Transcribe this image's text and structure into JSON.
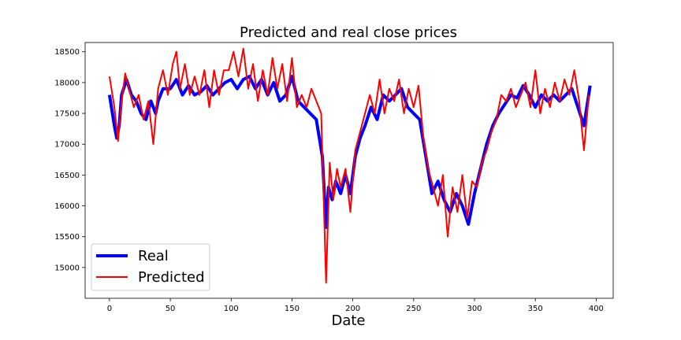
{
  "chart_data": {
    "type": "line",
    "title": "Predicted and real close prices",
    "xlabel": "Date",
    "ylabel": "",
    "xlim": [
      -20,
      414
    ],
    "ylim": [
      14500,
      18650
    ],
    "x_ticks": [
      0,
      50,
      100,
      150,
      200,
      250,
      300,
      350,
      400
    ],
    "y_ticks": [
      15000,
      15500,
      16000,
      16500,
      17000,
      17500,
      18000,
      18500
    ],
    "grid": false,
    "legend_position": "lower-left",
    "series": [
      {
        "name": "Real",
        "color": "#0000ff",
        "keypoints": [
          [
            0,
            17800
          ],
          [
            2,
            17550
          ],
          [
            4,
            17300
          ],
          [
            6,
            17100
          ],
          [
            8,
            17300
          ],
          [
            10,
            17800
          ],
          [
            14,
            18050
          ],
          [
            18,
            17800
          ],
          [
            22,
            17700
          ],
          [
            26,
            17500
          ],
          [
            30,
            17400
          ],
          [
            34,
            17700
          ],
          [
            38,
            17500
          ],
          [
            40,
            17700
          ],
          [
            44,
            17900
          ],
          [
            50,
            17900
          ],
          [
            55,
            18050
          ],
          [
            60,
            17800
          ],
          [
            65,
            17950
          ],
          [
            70,
            17800
          ],
          [
            75,
            17850
          ],
          [
            80,
            17950
          ],
          [
            85,
            17800
          ],
          [
            90,
            17900
          ],
          [
            95,
            18000
          ],
          [
            100,
            18050
          ],
          [
            105,
            17900
          ],
          [
            110,
            18050
          ],
          [
            115,
            18100
          ],
          [
            120,
            17900
          ],
          [
            125,
            18050
          ],
          [
            130,
            17800
          ],
          [
            135,
            18000
          ],
          [
            140,
            17700
          ],
          [
            145,
            17800
          ],
          [
            150,
            18100
          ],
          [
            155,
            17700
          ],
          [
            160,
            17600
          ],
          [
            165,
            17500
          ],
          [
            170,
            17400
          ],
          [
            175,
            16800
          ],
          [
            178,
            15650
          ],
          [
            180,
            16300
          ],
          [
            183,
            16100
          ],
          [
            186,
            16400
          ],
          [
            190,
            16200
          ],
          [
            194,
            16500
          ],
          [
            198,
            16200
          ],
          [
            202,
            16800
          ],
          [
            206,
            17100
          ],
          [
            210,
            17300
          ],
          [
            215,
            17600
          ],
          [
            220,
            17400
          ],
          [
            225,
            17800
          ],
          [
            230,
            17700
          ],
          [
            235,
            17800
          ],
          [
            240,
            17900
          ],
          [
            245,
            17600
          ],
          [
            250,
            17500
          ],
          [
            255,
            17400
          ],
          [
            260,
            16800
          ],
          [
            265,
            16200
          ],
          [
            270,
            16400
          ],
          [
            275,
            16100
          ],
          [
            280,
            15900
          ],
          [
            285,
            16200
          ],
          [
            290,
            16000
          ],
          [
            295,
            15700
          ],
          [
            300,
            16200
          ],
          [
            305,
            16600
          ],
          [
            310,
            17000
          ],
          [
            315,
            17300
          ],
          [
            320,
            17500
          ],
          [
            325,
            17650
          ],
          [
            330,
            17800
          ],
          [
            335,
            17750
          ],
          [
            340,
            17950
          ],
          [
            345,
            17800
          ],
          [
            350,
            17600
          ],
          [
            355,
            17800
          ],
          [
            360,
            17700
          ],
          [
            365,
            17800
          ],
          [
            370,
            17700
          ],
          [
            375,
            17800
          ],
          [
            380,
            17900
          ],
          [
            385,
            17600
          ],
          [
            390,
            17300
          ],
          [
            395,
            17950
          ]
        ]
      },
      {
        "name": "Predicted",
        "color": "#ff0000",
        "keypoints": [
          [
            0,
            18100
          ],
          [
            4,
            17600
          ],
          [
            7,
            17050
          ],
          [
            10,
            17700
          ],
          [
            13,
            18150
          ],
          [
            16,
            17900
          ],
          [
            20,
            17600
          ],
          [
            24,
            17800
          ],
          [
            28,
            17400
          ],
          [
            32,
            17700
          ],
          [
            36,
            17000
          ],
          [
            40,
            17900
          ],
          [
            44,
            18200
          ],
          [
            48,
            17800
          ],
          [
            52,
            18300
          ],
          [
            55,
            18500
          ],
          [
            58,
            17900
          ],
          [
            62,
            18300
          ],
          [
            66,
            17800
          ],
          [
            70,
            18100
          ],
          [
            74,
            17800
          ],
          [
            78,
            18200
          ],
          [
            82,
            17600
          ],
          [
            86,
            18200
          ],
          [
            90,
            17800
          ],
          [
            94,
            18200
          ],
          [
            98,
            18200
          ],
          [
            102,
            18500
          ],
          [
            106,
            18100
          ],
          [
            110,
            18550
          ],
          [
            114,
            17900
          ],
          [
            118,
            18300
          ],
          [
            122,
            17700
          ],
          [
            126,
            18200
          ],
          [
            130,
            17800
          ],
          [
            134,
            18400
          ],
          [
            138,
            17900
          ],
          [
            142,
            18300
          ],
          [
            146,
            17700
          ],
          [
            150,
            18400
          ],
          [
            154,
            17600
          ],
          [
            158,
            17800
          ],
          [
            162,
            17600
          ],
          [
            166,
            17900
          ],
          [
            170,
            17700
          ],
          [
            174,
            17500
          ],
          [
            178,
            14750
          ],
          [
            181,
            16700
          ],
          [
            184,
            16100
          ],
          [
            187,
            16600
          ],
          [
            190,
            16300
          ],
          [
            194,
            16600
          ],
          [
            198,
            15900
          ],
          [
            202,
            16900
          ],
          [
            206,
            17200
          ],
          [
            210,
            17500
          ],
          [
            214,
            17800
          ],
          [
            218,
            17500
          ],
          [
            222,
            18050
          ],
          [
            226,
            17500
          ],
          [
            230,
            17900
          ],
          [
            234,
            17700
          ],
          [
            238,
            18050
          ],
          [
            242,
            17500
          ],
          [
            246,
            17900
          ],
          [
            250,
            17600
          ],
          [
            254,
            17950
          ],
          [
            258,
            17100
          ],
          [
            262,
            16600
          ],
          [
            266,
            16300
          ],
          [
            270,
            16000
          ],
          [
            274,
            16500
          ],
          [
            278,
            15500
          ],
          [
            282,
            16300
          ],
          [
            286,
            15900
          ],
          [
            290,
            16500
          ],
          [
            294,
            15800
          ],
          [
            298,
            16400
          ],
          [
            302,
            16300
          ],
          [
            306,
            16700
          ],
          [
            310,
            16900
          ],
          [
            314,
            17200
          ],
          [
            318,
            17400
          ],
          [
            322,
            17800
          ],
          [
            326,
            17700
          ],
          [
            330,
            17900
          ],
          [
            334,
            17600
          ],
          [
            338,
            17800
          ],
          [
            342,
            18000
          ],
          [
            346,
            17600
          ],
          [
            350,
            18200
          ],
          [
            354,
            17500
          ],
          [
            358,
            17900
          ],
          [
            362,
            17600
          ],
          [
            366,
            18000
          ],
          [
            370,
            17700
          ],
          [
            374,
            18050
          ],
          [
            378,
            17800
          ],
          [
            382,
            18200
          ],
          [
            386,
            17700
          ],
          [
            390,
            16900
          ],
          [
            394,
            17800
          ]
        ]
      }
    ]
  }
}
